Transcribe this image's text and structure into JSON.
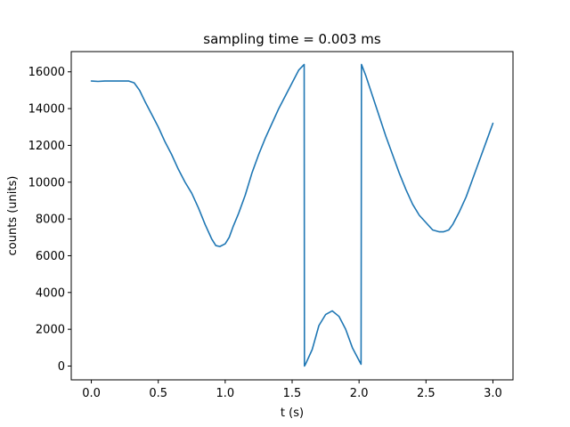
{
  "chart_data": {
    "type": "line",
    "title": "sampling time = 0.003 ms",
    "xlabel": "t (s)",
    "ylabel": "counts (units)",
    "xlim": [
      -0.15,
      3.15
    ],
    "ylim": [
      -750,
      17100
    ],
    "xticks": [
      0.0,
      0.5,
      1.0,
      1.5,
      2.0,
      2.5,
      3.0
    ],
    "xtick_labels": [
      "0.0",
      "0.5",
      "1.0",
      "1.5",
      "2.0",
      "2.5",
      "3.0"
    ],
    "yticks": [
      0,
      2000,
      4000,
      6000,
      8000,
      10000,
      12000,
      14000,
      16000
    ],
    "ytick_labels": [
      "0",
      "2000",
      "4000",
      "6000",
      "8000",
      "10000",
      "12000",
      "14000",
      "16000"
    ],
    "grid": false,
    "series": [
      {
        "color": "#1f77b4",
        "x": [
          0.0,
          0.05,
          0.1,
          0.2,
          0.28,
          0.32,
          0.36,
          0.4,
          0.45,
          0.5,
          0.55,
          0.6,
          0.65,
          0.7,
          0.75,
          0.8,
          0.85,
          0.9,
          0.93,
          0.96,
          1.0,
          1.03,
          1.06,
          1.1,
          1.15,
          1.2,
          1.25,
          1.3,
          1.35,
          1.4,
          1.45,
          1.5,
          1.55,
          1.59,
          1.592,
          1.6,
          1.65,
          1.7,
          1.75,
          1.8,
          1.85,
          1.9,
          1.95,
          2.0,
          2.015,
          2.018,
          2.05,
          2.1,
          2.15,
          2.2,
          2.25,
          2.3,
          2.35,
          2.4,
          2.45,
          2.5,
          2.55,
          2.6,
          2.63,
          2.67,
          2.7,
          2.75,
          2.8,
          2.85,
          2.9,
          2.95,
          3.0
        ],
        "y": [
          15500,
          15480,
          15500,
          15500,
          15500,
          15400,
          15000,
          14400,
          13700,
          13000,
          12200,
          11500,
          10700,
          10000,
          9400,
          8600,
          7700,
          6900,
          6550,
          6500,
          6650,
          7000,
          7600,
          8300,
          9300,
          10500,
          11500,
          12400,
          13200,
          14000,
          14700,
          15400,
          16100,
          16400,
          0,
          100,
          900,
          2200,
          2800,
          3000,
          2700,
          2000,
          1000,
          300,
          100,
          16400,
          15800,
          14700,
          13600,
          12500,
          11500,
          10500,
          9600,
          8800,
          8200,
          7800,
          7400,
          7300,
          7300,
          7400,
          7700,
          8400,
          9200,
          10200,
          11200,
          12200,
          13200
        ]
      }
    ]
  }
}
